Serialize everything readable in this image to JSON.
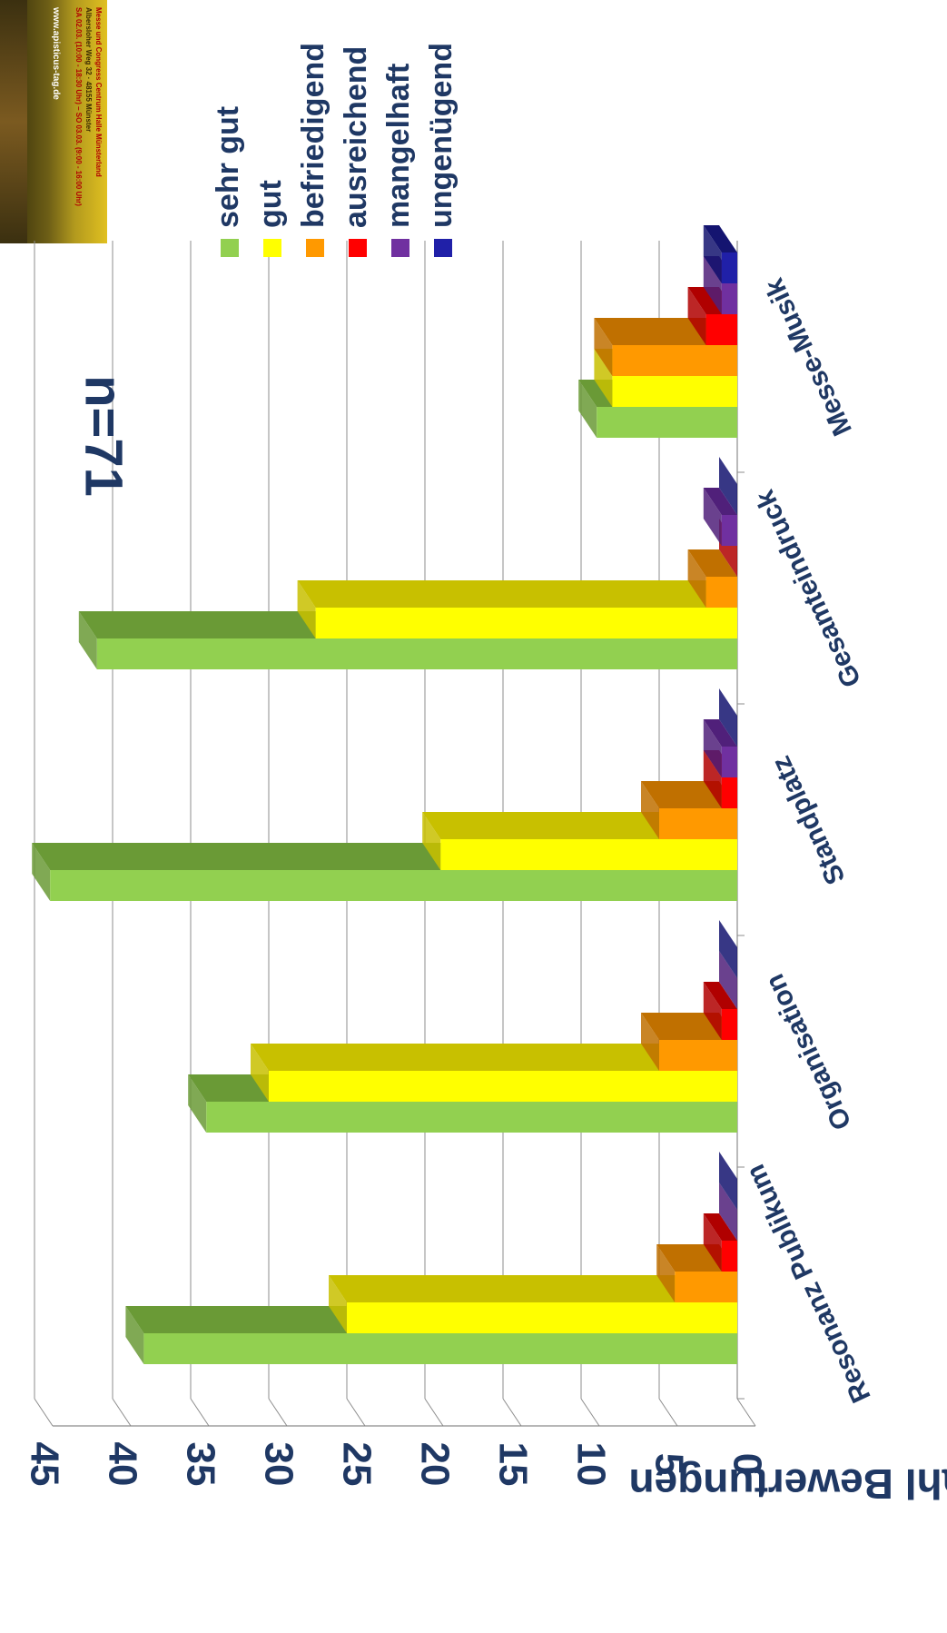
{
  "chart_data": {
    "type": "bar",
    "title": "n=71",
    "ylabel": "Anzahl Bewertungen",
    "xlabel": "",
    "ylim": [
      0,
      45
    ],
    "yticks": [
      0,
      5,
      10,
      15,
      20,
      25,
      30,
      35,
      40,
      45
    ],
    "categories": [
      "Resonanz Publikum",
      "Organisation",
      "Standplatz",
      "Gesamteindruck",
      "Messe-Musik"
    ],
    "series": [
      {
        "name": "sehr gut",
        "values": [
          38,
          34,
          44,
          41,
          9
        ]
      },
      {
        "name": "gut",
        "values": [
          25,
          30,
          19,
          27,
          8
        ]
      },
      {
        "name": "befriedigend",
        "values": [
          4,
          5,
          5,
          2,
          8
        ]
      },
      {
        "name": "ausreichend",
        "values": [
          1,
          1,
          1,
          0,
          2
        ]
      },
      {
        "name": "mangelhaft",
        "values": [
          0,
          0,
          1,
          1,
          1
        ]
      },
      {
        "name": "ungenügend",
        "values": [
          0,
          0,
          0,
          0,
          1
        ]
      }
    ],
    "legend_position": "top-right",
    "grid": true,
    "colors": [
      "#92d050",
      "#ffff00",
      "#ff9900",
      "#ff0000",
      "#7030a0",
      "#2020a8"
    ],
    "shade_colors": [
      "#6a9a36",
      "#c8c000",
      "#c07000",
      "#b00000",
      "#50207a",
      "#141470"
    ]
  },
  "logo": {
    "line1": "Messe und Congress Centrum Halle Münsterland",
    "line2": "Albersloher Weg 32 · 48155 Münster",
    "line3": "SA 02.03. (10:00 - 18:30 Uhr) – SO 03.03. (9:00 - 16:00 Uhr)",
    "url": "www.apisticus-tag.de"
  },
  "colors": {
    "text": "#1f3864",
    "grid": "#8c8c8c"
  }
}
